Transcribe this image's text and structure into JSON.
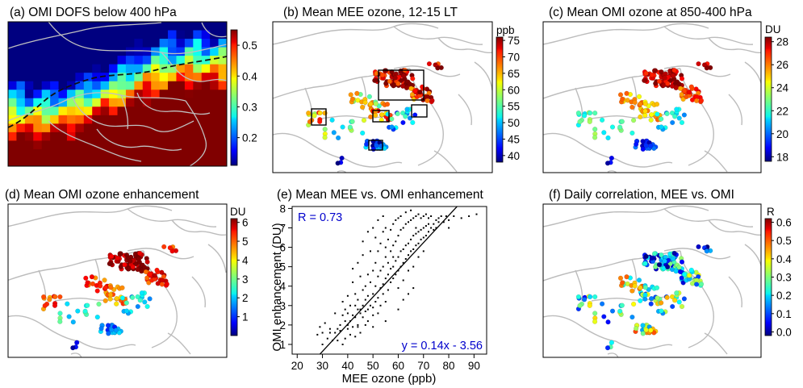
{
  "panels": {
    "a": {
      "title": "(a) OMI DOFS below 400 hPa",
      "colorbar": {
        "unit": "",
        "min": 0.11,
        "max": 0.55,
        "ticks": [
          "0.2",
          "0.3",
          "0.4",
          "0.5"
        ]
      }
    },
    "b": {
      "title": "(b) Mean MEE ozone, 12-15 LT",
      "colorbar": {
        "unit": "ppb",
        "min": 38,
        "max": 76,
        "ticks": [
          "40",
          "45",
          "50",
          "55",
          "60",
          "65",
          "70",
          "75"
        ]
      }
    },
    "c": {
      "title": "(c) Mean OMI ozone at 850-400 hPa",
      "colorbar": {
        "unit": "DU",
        "min": 17.6,
        "max": 28.4,
        "ticks": [
          "18",
          "20",
          "22",
          "24",
          "26",
          "28"
        ]
      }
    },
    "d": {
      "title": "(d) Mean OMI ozone enhancement",
      "colorbar": {
        "unit": "DU",
        "min": 0,
        "max": 6.2,
        "ticks": [
          "1",
          "2",
          "3",
          "4",
          "5",
          "6"
        ]
      }
    },
    "e": {
      "title": "(e) Mean MEE vs. OMI enhancement"
    },
    "f": {
      "title": "(f) Daily correlation, MEE vs. OMI",
      "colorbar": {
        "unit": "R",
        "min": -0.02,
        "max": 0.62,
        "ticks": [
          "0.0",
          "0.1",
          "0.2",
          "0.3",
          "0.4",
          "0.5",
          "0.6"
        ]
      }
    }
  },
  "colors": {
    "map_border": "#bfbfbf",
    "annotation": "#0000cc",
    "scatter_point": "#000000"
  },
  "chart_data": {
    "type": "scatter",
    "title": "(e) Mean MEE vs. OMI enhancement",
    "xlabel": "MEE ozone (ppb)",
    "ylabel": "OMI enhancement (DU)",
    "xlim": [
      18,
      95
    ],
    "ylim": [
      0.5,
      8.1
    ],
    "xticks": [
      20,
      30,
      40,
      50,
      60,
      70,
      80,
      90
    ],
    "yticks": [
      1,
      2,
      3,
      4,
      5,
      6,
      7,
      8
    ],
    "r_label": "R = 0.73",
    "fit_label": "y = 0.14x - 3.56",
    "fit": {
      "slope": 0.14,
      "intercept": -3.56
    },
    "grid": false,
    "points": [
      [
        28,
        1.5
      ],
      [
        30,
        1.0
      ],
      [
        30,
        1.6
      ],
      [
        33,
        1.6
      ],
      [
        34,
        1.2
      ],
      [
        35,
        2.6
      ],
      [
        35,
        1.6
      ],
      [
        36,
        1.8
      ],
      [
        37,
        2.0
      ],
      [
        37,
        1.7
      ],
      [
        38,
        1.0
      ],
      [
        38,
        2.5
      ],
      [
        38,
        3.2
      ],
      [
        39,
        2.2
      ],
      [
        39,
        2.8
      ],
      [
        40,
        1.8
      ],
      [
        40,
        2.0
      ],
      [
        40,
        2.6
      ],
      [
        40,
        3.5
      ],
      [
        41,
        1.5
      ],
      [
        41,
        2.2
      ],
      [
        41,
        3.0
      ],
      [
        42,
        2.5
      ],
      [
        42,
        1.9
      ],
      [
        42,
        4.2
      ],
      [
        43,
        2.4
      ],
      [
        43,
        3.0
      ],
      [
        43,
        3.6
      ],
      [
        44,
        1.9
      ],
      [
        44,
        2.8
      ],
      [
        44,
        2.0
      ],
      [
        44,
        3.3
      ],
      [
        45,
        2.6
      ],
      [
        45,
        2.8
      ],
      [
        45,
        4.5
      ],
      [
        46,
        2.4
      ],
      [
        46,
        3.0
      ],
      [
        46,
        3.8
      ],
      [
        46,
        5.6
      ],
      [
        47,
        2.0
      ],
      [
        47,
        2.7
      ],
      [
        47,
        4.0
      ],
      [
        47,
        3.3
      ],
      [
        48,
        2.2
      ],
      [
        48,
        3.5
      ],
      [
        48,
        4.6
      ],
      [
        48,
        2.8
      ],
      [
        49,
        3.0
      ],
      [
        49,
        4.2
      ],
      [
        49,
        5.8
      ],
      [
        50,
        2.5
      ],
      [
        50,
        3.6
      ],
      [
        50,
        4.8
      ],
      [
        50,
        2.9
      ],
      [
        51,
        3.2
      ],
      [
        51,
        4.0
      ],
      [
        51,
        5.2
      ],
      [
        51,
        6.5
      ],
      [
        52,
        3.4
      ],
      [
        52,
        4.5
      ],
      [
        52,
        2.6
      ],
      [
        52,
        5.8
      ],
      [
        53,
        3.9
      ],
      [
        53,
        4.8
      ],
      [
        53,
        3.0
      ],
      [
        53,
        6.2
      ],
      [
        54,
        4.1
      ],
      [
        54,
        5.0
      ],
      [
        54,
        3.6
      ],
      [
        54,
        6.8
      ],
      [
        55,
        4.4
      ],
      [
        55,
        5.5
      ],
      [
        55,
        3.2
      ],
      [
        55,
        6.0
      ],
      [
        55,
        7.0
      ],
      [
        56,
        4.6
      ],
      [
        56,
        5.2
      ],
      [
        56,
        3.8
      ],
      [
        56,
        6.4
      ],
      [
        57,
        4.9
      ],
      [
        57,
        5.8
      ],
      [
        57,
        4.2
      ],
      [
        57,
        6.9
      ],
      [
        58,
        5.0
      ],
      [
        58,
        6.1
      ],
      [
        58,
        4.4
      ],
      [
        58,
        7.2
      ],
      [
        58,
        5.5
      ],
      [
        59,
        5.3
      ],
      [
        59,
        6.3
      ],
      [
        59,
        4.6
      ],
      [
        59,
        7.4
      ],
      [
        60,
        5.5
      ],
      [
        60,
        6.6
      ],
      [
        60,
        4.8
      ],
      [
        60,
        7.5
      ],
      [
        60,
        3.9
      ],
      [
        61,
        5.8
      ],
      [
        61,
        6.9
      ],
      [
        61,
        5.0
      ],
      [
        61,
        7.6
      ],
      [
        62,
        5.9
      ],
      [
        62,
        7.0
      ],
      [
        62,
        5.2
      ],
      [
        62,
        4.3
      ],
      [
        63,
        6.1
      ],
      [
        63,
        7.2
      ],
      [
        63,
        5.4
      ],
      [
        63,
        7.8
      ],
      [
        64,
        6.2
      ],
      [
        64,
        7.3
      ],
      [
        64,
        5.6
      ],
      [
        64,
        4.8
      ],
      [
        65,
        6.4
      ],
      [
        65,
        7.4
      ],
      [
        65,
        5.8
      ],
      [
        65,
        7.9
      ],
      [
        66,
        6.6
      ],
      [
        66,
        7.5
      ],
      [
        66,
        5.9
      ],
      [
        66,
        5.0
      ],
      [
        67,
        6.7
      ],
      [
        67,
        7.6
      ],
      [
        67,
        6.1
      ],
      [
        67,
        7.0
      ],
      [
        68,
        6.8
      ],
      [
        68,
        7.7
      ],
      [
        68,
        6.2
      ],
      [
        68,
        5.5
      ],
      [
        69,
        6.9
      ],
      [
        69,
        7.5
      ],
      [
        69,
        6.4
      ],
      [
        70,
        7.0
      ],
      [
        70,
        7.6
      ],
      [
        70,
        6.5
      ],
      [
        70,
        5.8
      ],
      [
        71,
        7.1
      ],
      [
        71,
        7.7
      ],
      [
        71,
        6.6
      ],
      [
        72,
        7.2
      ],
      [
        72,
        7.5
      ],
      [
        72,
        6.8
      ],
      [
        73,
        7.0
      ],
      [
        73,
        7.6
      ],
      [
        74,
        7.2
      ],
      [
        74,
        6.9
      ],
      [
        75,
        7.4
      ],
      [
        75,
        7.0
      ],
      [
        76,
        7.3
      ],
      [
        76,
        7.5
      ],
      [
        77,
        7.6
      ],
      [
        78,
        7.3
      ],
      [
        79,
        7.6
      ],
      [
        80,
        7.4
      ],
      [
        80,
        7.0
      ],
      [
        82,
        7.6
      ],
      [
        85,
        7.5
      ],
      [
        88,
        7.6
      ],
      [
        91,
        7.7
      ],
      [
        42,
        4.9
      ],
      [
        44,
        5.2
      ],
      [
        46,
        6.3
      ],
      [
        48,
        6.8
      ],
      [
        50,
        7.0
      ],
      [
        52,
        7.4
      ],
      [
        54,
        7.6
      ],
      [
        45,
        1.6
      ],
      [
        50,
        1.9
      ],
      [
        55,
        2.2
      ],
      [
        60,
        2.8
      ],
      [
        62,
        3.3
      ],
      [
        64,
        3.6
      ],
      [
        66,
        3.9
      ],
      [
        43,
        1.4
      ],
      [
        39,
        1.3
      ],
      [
        36,
        1.2
      ],
      [
        33,
        1.8
      ],
      [
        32,
        1.3
      ],
      [
        29,
        1.9
      ],
      [
        31,
        2.1
      ]
    ]
  }
}
